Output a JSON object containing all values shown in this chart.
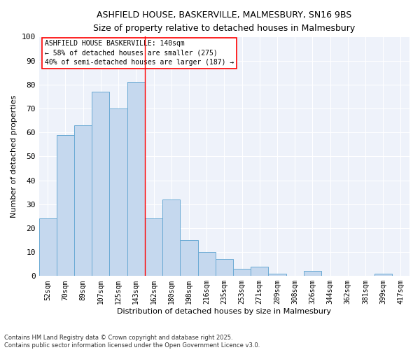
{
  "title_line1": "ASHFIELD HOUSE, BASKERVILLE, MALMESBURY, SN16 9BS",
  "title_line2": "Size of property relative to detached houses in Malmesbury",
  "xlabel": "Distribution of detached houses by size in Malmesbury",
  "ylabel": "Number of detached properties",
  "bar_labels": [
    "52sqm",
    "70sqm",
    "89sqm",
    "107sqm",
    "125sqm",
    "143sqm",
    "162sqm",
    "180sqm",
    "198sqm",
    "216sqm",
    "235sqm",
    "253sqm",
    "271sqm",
    "289sqm",
    "308sqm",
    "326sqm",
    "344sqm",
    "362sqm",
    "381sqm",
    "399sqm",
    "417sqm"
  ],
  "bar_values": [
    24,
    59,
    63,
    77,
    70,
    81,
    24,
    32,
    15,
    10,
    7,
    3,
    4,
    1,
    0,
    2,
    0,
    0,
    0,
    1,
    0
  ],
  "bar_color": "#c5d8ee",
  "bar_edgecolor": "#6aaad4",
  "bg_color": "#eef2fa",
  "grid_color": "#ffffff",
  "vline_x": 5.5,
  "vline_color": "red",
  "annotation_title": "ASHFIELD HOUSE BASKERVILLE: 140sqm",
  "annotation_line1": "← 58% of detached houses are smaller (275)",
  "annotation_line2": "40% of semi-detached houses are larger (187) →",
  "footer_line1": "Contains HM Land Registry data © Crown copyright and database right 2025.",
  "footer_line2": "Contains public sector information licensed under the Open Government Licence v3.0.",
  "ylim": [
    0,
    100
  ],
  "yticks": [
    0,
    10,
    20,
    30,
    40,
    50,
    60,
    70,
    80,
    90,
    100
  ]
}
